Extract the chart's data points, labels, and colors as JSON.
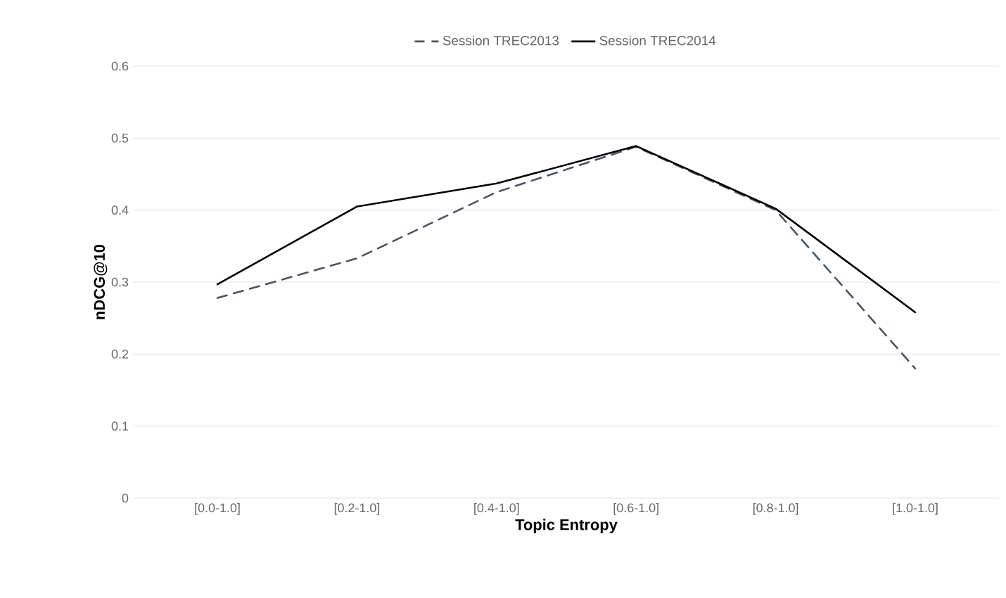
{
  "chart_data": {
    "type": "line",
    "xlabel": "Topic Entropy",
    "ylabel": "nDCG@10",
    "categories": [
      "[0.0-1.0]",
      "[0.2-1.0]",
      "[0.4-1.0]",
      "[0.6-1.0]",
      "[0.8-1.0]",
      "[1.0-1.0]"
    ],
    "series": [
      {
        "name": "Session TREC2013",
        "color": "#44546a",
        "line_style": "dashed",
        "values": [
          0.278,
          0.333,
          0.425,
          0.488,
          0.4,
          0.18
        ]
      },
      {
        "name": "Session TREC2014",
        "color": "#000000",
        "line_style": "solid",
        "values": [
          0.297,
          0.405,
          0.437,
          0.489,
          0.402,
          0.258
        ]
      }
    ],
    "ylim": [
      0,
      0.6
    ],
    "yticks": [
      0,
      0.1,
      0.2,
      0.3,
      0.4,
      0.5,
      0.6
    ],
    "grid": "y",
    "legend": "top",
    "marker": "none"
  }
}
